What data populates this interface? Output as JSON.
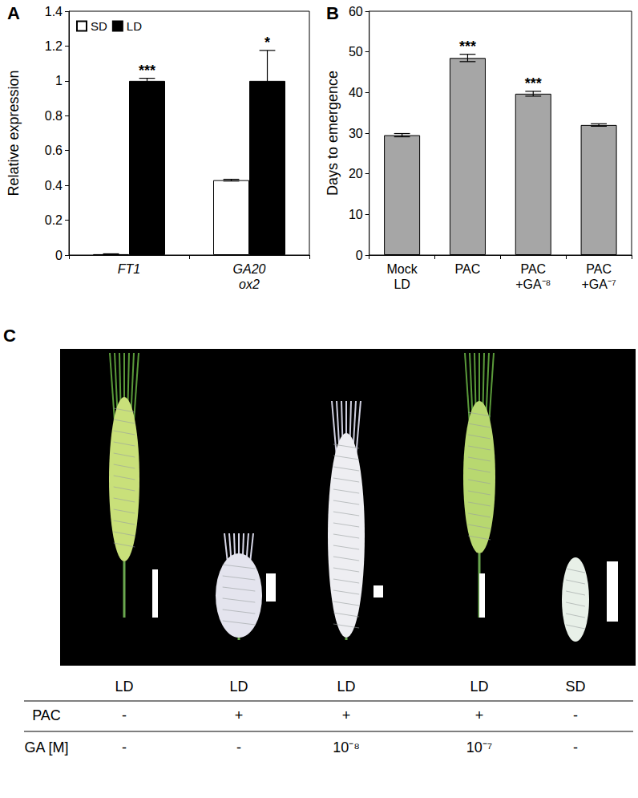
{
  "chart_data": [
    {
      "type": "bar",
      "title": "A",
      "y_label": "Relative expression",
      "categories": [
        "FT1",
        "GA20\nox2"
      ],
      "series": [
        {
          "name": "SD",
          "color": "#ffffff",
          "values": [
            0.005,
            0.43
          ],
          "errors": [
            0.002,
            0.005
          ]
        },
        {
          "name": "LD",
          "color": "#000000",
          "values": [
            1,
            1
          ],
          "errors": [
            0.015,
            0.175
          ]
        }
      ],
      "annotations": [
        {
          "category": "FT1",
          "series": "LD",
          "text": "***"
        },
        {
          "category": "GA20\nox2",
          "series": "LD",
          "text": "*"
        }
      ],
      "ylim": [
        0,
        1.4
      ],
      "yticks": [
        0,
        0.2,
        0.4,
        0.6,
        0.8,
        1,
        1.2,
        1.4
      ],
      "legend": "top-left",
      "grid": false
    },
    {
      "type": "bar",
      "title": "B",
      "y_label": "Days to emergence",
      "categories": [
        "Mock\nLD",
        "PAC",
        "PAC\n+GA⁻⁸",
        "PAC\n+GA⁻⁷"
      ],
      "values": [
        29.5,
        48.5,
        39.7,
        32.0
      ],
      "errors": [
        0.4,
        0.9,
        0.6,
        0.3
      ],
      "color": "#a6a6a6",
      "annotations": [
        {
          "category": "PAC",
          "text": "***"
        },
        {
          "category": "PAC\n+GA⁻⁸",
          "text": "***"
        }
      ],
      "ylim": [
        0,
        60
      ],
      "yticks": [
        0,
        10,
        20,
        30,
        40,
        50,
        60
      ],
      "grid": false
    }
  ],
  "panel_c": {
    "title": "C",
    "row_labels": {
      "PAC": "PAC",
      "GA": "GA [M]"
    },
    "columns": [
      {
        "photoperiod": "LD",
        "PAC": "-",
        "GA": "-"
      },
      {
        "photoperiod": "LD",
        "PAC": "+",
        "GA": "-"
      },
      {
        "photoperiod": "LD",
        "PAC": "+",
        "GA": "10⁻⁸"
      },
      {
        "photoperiod": "LD",
        "PAC": "+",
        "GA": "10⁻⁷"
      },
      {
        "photoperiod": "SD",
        "PAC": "-",
        "GA": "-"
      }
    ]
  }
}
